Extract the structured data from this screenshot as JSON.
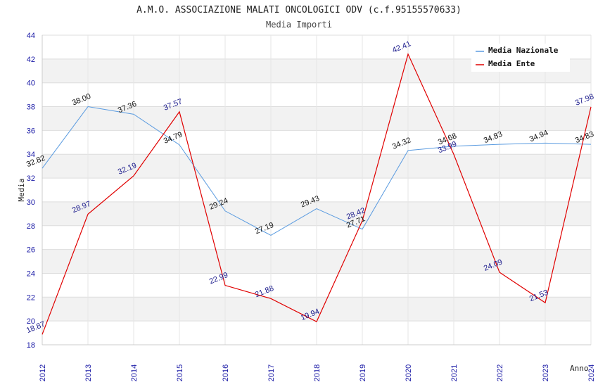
{
  "chart_data": {
    "type": "line",
    "title": "A.M.O. ASSOCIAZIONE MALATI ONCOLOGICI ODV (c.f.95155570633)",
    "subtitle": "Media Importi",
    "xlabel": "Anno",
    "ylabel": "Media",
    "ylim": [
      18,
      44
    ],
    "yticks": [
      "18",
      "20",
      "22",
      "24",
      "26",
      "28",
      "30",
      "32",
      "34",
      "36",
      "38",
      "40",
      "42",
      "44"
    ],
    "categories": [
      "2012",
      "2013",
      "2014",
      "2015",
      "2016",
      "2017",
      "2018",
      "2019",
      "2020",
      "2021",
      "2022",
      "2023",
      "2024"
    ],
    "legend_position": "top-right",
    "series": [
      {
        "name": "Media Nazionale",
        "color": "#5a9be0",
        "values": [
          32.82,
          38.0,
          37.36,
          34.79,
          29.24,
          27.19,
          29.43,
          27.71,
          34.32,
          34.68,
          34.83,
          34.94,
          34.83
        ],
        "labels": [
          "32.82",
          "38.00",
          "37.36",
          "34.79",
          "29.24",
          "27.19",
          "29.43",
          "27.71",
          "34.32",
          "34.68",
          "34.83",
          "34.94",
          "34.83"
        ]
      },
      {
        "name": "Media Ente",
        "color": "#e00000",
        "values": [
          18.87,
          28.97,
          32.19,
          37.57,
          22.99,
          21.88,
          19.94,
          28.42,
          42.41,
          33.99,
          24.09,
          21.53,
          37.98
        ],
        "labels": [
          "18.87",
          "28.97",
          "32.19",
          "37.57",
          "22.99",
          "21.88",
          "19.94",
          "28.42",
          "42.41",
          "33.99",
          "24.09",
          "21.53",
          "37.98"
        ]
      }
    ]
  }
}
